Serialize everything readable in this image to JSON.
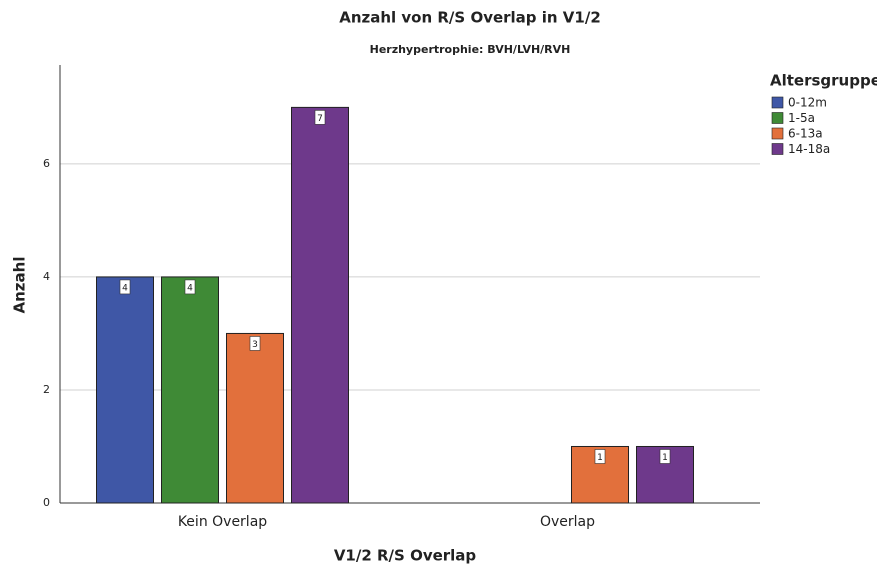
{
  "chart_data": {
    "type": "bar",
    "title": "Anzahl von R/S Overlap in V1/2",
    "subtitle": "Herzhypertrophie: BVH/LVH/RVH",
    "x_label": "V1/2 R/S Overlap",
    "y_label": "Anzahl",
    "legend_title": "Altersgruppen",
    "categories": [
      "Kein Overlap",
      "Overlap"
    ],
    "series": [
      {
        "name": "0-12m",
        "color": "#3f57a6",
        "values": [
          4,
          null
        ]
      },
      {
        "name": "1-5a",
        "color": "#3f8a36",
        "values": [
          4,
          null
        ]
      },
      {
        "name": "6-13a",
        "color": "#e2703c",
        "values": [
          3,
          1
        ]
      },
      {
        "name": "14-18a",
        "color": "#6e398b",
        "values": [
          7,
          1
        ]
      }
    ],
    "ylim": [
      0,
      7.75
    ],
    "yticks": [
      0,
      2,
      4,
      6
    ],
    "grid": true,
    "legend": "right"
  }
}
